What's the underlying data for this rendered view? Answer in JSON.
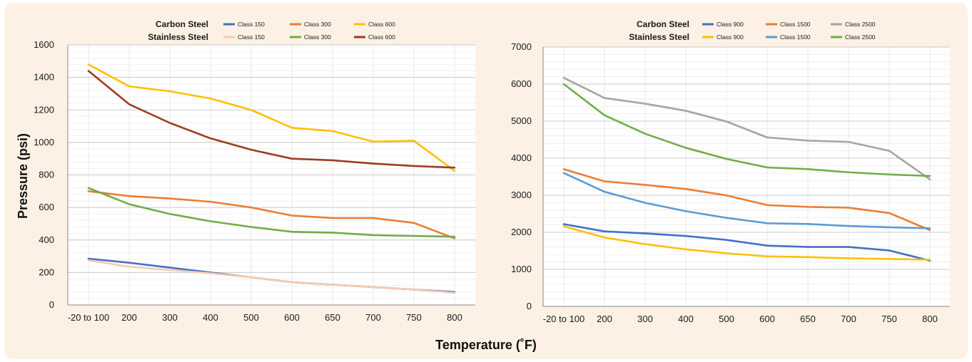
{
  "axis_titles": {
    "y": "Pressure (psi)",
    "x": "Temperature (˚F)"
  },
  "chart_data": [
    {
      "type": "line",
      "categories": [
        "-20 to 100",
        "200",
        "300",
        "400",
        "500",
        "600",
        "650",
        "700",
        "750",
        "800"
      ],
      "ylim": [
        0,
        1600
      ],
      "yticks": [
        0,
        200,
        400,
        600,
        800,
        1000,
        1200,
        1400,
        1600
      ],
      "grid": true,
      "legend": {
        "placement": "top",
        "groups": [
          {
            "label": "Carbon Steel",
            "series": [
              "cs150",
              "cs300",
              "cs600"
            ]
          },
          {
            "label": "Stainless Steel",
            "series": [
              "ss150",
              "ss300",
              "ss600"
            ]
          }
        ]
      },
      "series": [
        {
          "id": "cs150",
          "group": "Carbon Steel",
          "name": "Class 150",
          "color": "#4472c4",
          "values": [
            285,
            260,
            230,
            200,
            170,
            140,
            125,
            110,
            95,
            80
          ]
        },
        {
          "id": "cs300",
          "group": "Carbon Steel",
          "name": "Class 300",
          "color": "#ed7d31",
          "values": [
            700,
            670,
            655,
            635,
            600,
            550,
            535,
            535,
            505,
            410
          ]
        },
        {
          "id": "cs600",
          "group": "Carbon Steel",
          "name": "Class 600",
          "color": "#ffc000",
          "values": [
            1480,
            1345,
            1315,
            1270,
            1200,
            1090,
            1070,
            1005,
            1010,
            825
          ]
        },
        {
          "id": "ss150",
          "group": "Stainless Steel",
          "name": "Class 150",
          "color": "#f8cbad",
          "values": [
            275,
            235,
            215,
            195,
            170,
            140,
            125,
            110,
            95,
            75
          ]
        },
        {
          "id": "ss300",
          "group": "Stainless Steel",
          "name": "Class 300",
          "color": "#70ad47",
          "values": [
            720,
            620,
            560,
            515,
            480,
            450,
            445,
            430,
            425,
            420
          ]
        },
        {
          "id": "ss600",
          "group": "Stainless Steel",
          "name": "Class 600",
          "color": "#9e3c20",
          "values": [
            1440,
            1235,
            1120,
            1025,
            955,
            900,
            890,
            870,
            855,
            845
          ]
        }
      ]
    },
    {
      "type": "line",
      "categories": [
        "-20 to 100",
        "200",
        "300",
        "400",
        "500",
        "600",
        "650",
        "700",
        "750",
        "800"
      ],
      "ylim": [
        0,
        7000
      ],
      "yticks": [
        0,
        1000,
        2000,
        3000,
        4000,
        5000,
        6000,
        7000
      ],
      "grid": true,
      "legend": {
        "placement": "top",
        "groups": [
          {
            "label": "Carbon Steel",
            "series": [
              "cs900",
              "cs1500",
              "cs2500"
            ]
          },
          {
            "label": "Stainless Steel",
            "series": [
              "ss900",
              "ss1500",
              "ss2500"
            ]
          }
        ]
      },
      "series": [
        {
          "id": "cs900",
          "group": "Carbon Steel",
          "name": "Class 900",
          "color": "#4472c4",
          "values": [
            2220,
            2025,
            1970,
            1900,
            1795,
            1640,
            1605,
            1605,
            1510,
            1235
          ]
        },
        {
          "id": "cs1500",
          "group": "Carbon Steel",
          "name": "Class 1500",
          "color": "#ed7d31",
          "values": [
            3705,
            3375,
            3280,
            3170,
            2995,
            2735,
            2685,
            2665,
            2520,
            2060
          ]
        },
        {
          "id": "cs2500",
          "group": "Carbon Steel",
          "name": "Class 2500",
          "color": "#a5a5a5",
          "values": [
            6170,
            5625,
            5470,
            5280,
            4990,
            4560,
            4475,
            4440,
            4200,
            3430
          ]
        },
        {
          "id": "ss900",
          "group": "Stainless Steel",
          "name": "Class 900",
          "color": "#ffc000",
          "values": [
            2160,
            1860,
            1680,
            1540,
            1435,
            1350,
            1330,
            1300,
            1280,
            1260
          ]
        },
        {
          "id": "ss1500",
          "group": "Stainless Steel",
          "name": "Class 1500",
          "color": "#5b9bd5",
          "values": [
            3600,
            3095,
            2795,
            2570,
            2390,
            2245,
            2225,
            2170,
            2135,
            2110
          ]
        },
        {
          "id": "ss2500",
          "group": "Stainless Steel",
          "name": "Class 2500",
          "color": "#70ad47",
          "values": [
            6000,
            5160,
            4660,
            4280,
            3980,
            3750,
            3705,
            3620,
            3560,
            3520
          ]
        }
      ]
    }
  ]
}
